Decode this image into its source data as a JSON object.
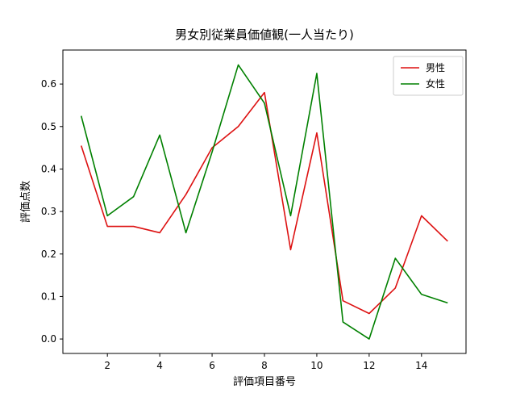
{
  "chart_data": {
    "type": "line",
    "title": "男女別従業員価値観(一人当たり)",
    "xlabel": "評価項目番号",
    "ylabel": "評価点数",
    "x": [
      1,
      2,
      3,
      4,
      5,
      6,
      7,
      8,
      9,
      10,
      11,
      12,
      13,
      14,
      15
    ],
    "series": [
      {
        "name": "男性",
        "color": "#dd1111",
        "values": [
          0.455,
          0.265,
          0.265,
          0.25,
          0.34,
          0.45,
          0.5,
          0.58,
          0.21,
          0.485,
          0.09,
          0.06,
          0.12,
          0.29,
          0.23
        ]
      },
      {
        "name": "女性",
        "color": "#008000",
        "values": [
          0.525,
          0.29,
          0.335,
          0.48,
          0.25,
          0.44,
          0.645,
          0.555,
          0.29,
          0.625,
          0.04,
          0.0,
          0.19,
          0.105,
          0.085
        ]
      }
    ],
    "xticks": [
      2,
      4,
      6,
      8,
      10,
      12,
      14
    ],
    "yticks": [
      0.0,
      0.1,
      0.2,
      0.3,
      0.4,
      0.5,
      0.6
    ],
    "xlim": [
      0.3,
      15.7
    ],
    "ylim": [
      -0.034,
      0.68
    ],
    "legend_position": "upper right",
    "grid": "off",
    "background_color": "#ffffff",
    "axis_color": "#000000",
    "legend_border_color": "#cccccc"
  }
}
